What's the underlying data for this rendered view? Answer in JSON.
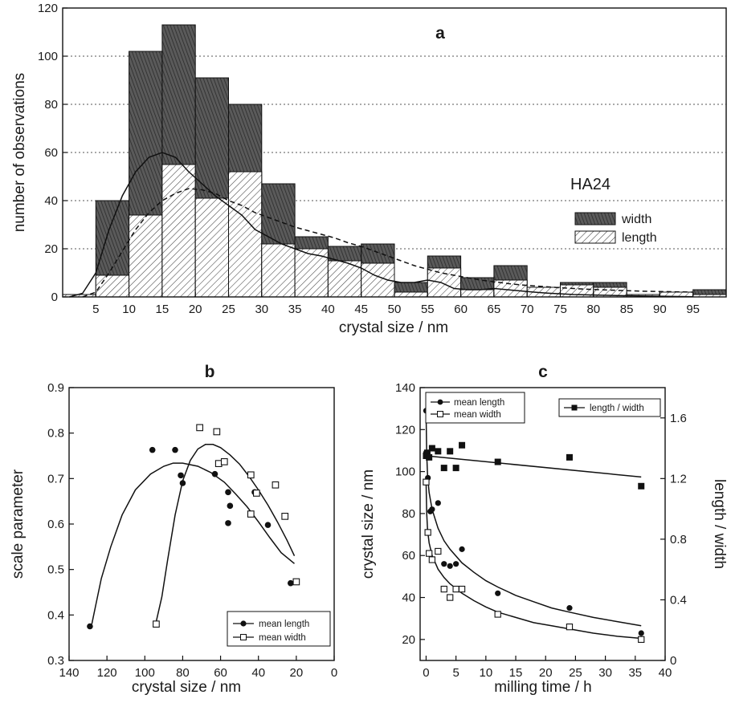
{
  "chart_data": [
    {
      "panel": "a",
      "type": "bar",
      "ylabel": "number of observations",
      "xlabel": "crystal size / nm",
      "annotation": "HA24",
      "xlim": [
        0,
        100
      ],
      "ylim": [
        0,
        120
      ],
      "xticks": [
        "5",
        "10",
        "15",
        "20",
        "25",
        "30",
        "35",
        "40",
        "45",
        "50",
        "55",
        "60",
        "65",
        "70",
        "75",
        "80",
        "85",
        "90",
        "95"
      ],
      "yticks": [
        "0",
        "20",
        "40",
        "60",
        "80",
        "100",
        "120"
      ],
      "grid": "horizontal dotted",
      "legend_position": "right",
      "bin_width": 5,
      "bin_starts": [
        0,
        5,
        10,
        15,
        20,
        25,
        30,
        35,
        40,
        45,
        50,
        55,
        60,
        65,
        70,
        75,
        80,
        85,
        90,
        95
      ],
      "series": [
        {
          "name": "width",
          "values": [
            1,
            40,
            102,
            113,
            91,
            80,
            47,
            25,
            21,
            22,
            6,
            17,
            8,
            13,
            4,
            6,
            6,
            1,
            2,
            3
          ]
        },
        {
          "name": "length",
          "values": [
            1,
            9,
            34,
            55,
            41,
            52,
            22,
            20,
            15,
            14,
            2,
            12,
            3,
            7,
            4,
            5,
            4,
            1,
            2,
            1
          ]
        }
      ],
      "fit_curves": [
        {
          "for": "width",
          "style": "solid",
          "points": [
            [
              1,
              0
            ],
            [
              3,
              1.5
            ],
            [
              5,
              10
            ],
            [
              7,
              28
            ],
            [
              9,
              42
            ],
            [
              11,
              52
            ],
            [
              13,
              58
            ],
            [
              15,
              60
            ],
            [
              17,
              58
            ],
            [
              19,
              52
            ],
            [
              21,
              47
            ],
            [
              23,
              42
            ],
            [
              25,
              38
            ],
            [
              27,
              34
            ],
            [
              29,
              28
            ],
            [
              31,
              25
            ],
            [
              33,
              22
            ],
            [
              35,
              20
            ],
            [
              37,
              18
            ],
            [
              39,
              17
            ],
            [
              41,
              15.5
            ],
            [
              43,
              14
            ],
            [
              45,
              12
            ],
            [
              47,
              9
            ],
            [
              49,
              7
            ],
            [
              51,
              6
            ],
            [
              53,
              6
            ],
            [
              55,
              7
            ],
            [
              57,
              6
            ],
            [
              59,
              3.5
            ],
            [
              61,
              3
            ],
            [
              63,
              3
            ],
            [
              65,
              3.5
            ],
            [
              67,
              3
            ],
            [
              69,
              2.5
            ],
            [
              71,
              2
            ],
            [
              73,
              1.6
            ],
            [
              75,
              1.3
            ],
            [
              77,
              1
            ],
            [
              80,
              0.8
            ],
            [
              85,
              0.5
            ],
            [
              90,
              0.3
            ],
            [
              95,
              0.1
            ]
          ]
        },
        {
          "for": "length",
          "style": "dashed",
          "points": [
            [
              3,
              0
            ],
            [
              5,
              2
            ],
            [
              7,
              10
            ],
            [
              9,
              19
            ],
            [
              11,
              28
            ],
            [
              13,
              35
            ],
            [
              15,
              40
            ],
            [
              17,
              43
            ],
            [
              19,
              45
            ],
            [
              21,
              44.5
            ],
            [
              23,
              43
            ],
            [
              25,
              40
            ],
            [
              27,
              38
            ],
            [
              29,
              35
            ],
            [
              31,
              33
            ],
            [
              33,
              31
            ],
            [
              35,
              29
            ],
            [
              37,
              27.5
            ],
            [
              39,
              26
            ],
            [
              41,
              24.5
            ],
            [
              43,
              22.5
            ],
            [
              45,
              21
            ],
            [
              47,
              19
            ],
            [
              49,
              17
            ],
            [
              51,
              15
            ],
            [
              53,
              13
            ],
            [
              55,
              11.5
            ],
            [
              57,
              10
            ],
            [
              59,
              9
            ],
            [
              61,
              8
            ],
            [
              63,
              7
            ],
            [
              65,
              6.3
            ],
            [
              67,
              5.6
            ],
            [
              69,
              5
            ],
            [
              71,
              4.6
            ],
            [
              73,
              4.2
            ],
            [
              75,
              3.8
            ],
            [
              77,
              3.5
            ],
            [
              79,
              3.2
            ],
            [
              81,
              3
            ],
            [
              83,
              2.8
            ],
            [
              85,
              2.6
            ],
            [
              87,
              2.4
            ],
            [
              89,
              2.3
            ],
            [
              91,
              2.2
            ],
            [
              93,
              2.1
            ],
            [
              95,
              2
            ]
          ]
        }
      ]
    },
    {
      "panel": "b",
      "type": "scatter",
      "ylabel": "scale parameter",
      "xlabel": "crystal size / nm",
      "xlim": [
        140,
        0
      ],
      "ylim": [
        0.3,
        0.9
      ],
      "xticks": [
        "140",
        "120",
        "100",
        "80",
        "60",
        "40",
        "20",
        "0"
      ],
      "yticks": [
        "0.3",
        "0.4",
        "0.5",
        "0.6",
        "0.7",
        "0.8",
        "0.9"
      ],
      "legend_position": "bottom-right",
      "series": [
        {
          "name": "mean length",
          "marker": "filled-circle",
          "points": [
            [
              129,
              0.375
            ],
            [
              96,
              0.763
            ],
            [
              84,
              0.763
            ],
            [
              81,
              0.707
            ],
            [
              80,
              0.69
            ],
            [
              63,
              0.71
            ],
            [
              56,
              0.67
            ],
            [
              56,
              0.602
            ],
            [
              55,
              0.64
            ],
            [
              42,
              0.67
            ],
            [
              35,
              0.598
            ],
            [
              23,
              0.47
            ]
          ]
        },
        {
          "name": "mean width",
          "marker": "open-square",
          "points": [
            [
              94,
              0.38
            ],
            [
              71,
              0.812
            ],
            [
              62,
              0.803
            ],
            [
              61,
              0.733
            ],
            [
              58,
              0.737
            ],
            [
              44,
              0.708
            ],
            [
              44,
              0.622
            ],
            [
              41,
              0.668
            ],
            [
              31,
              0.686
            ],
            [
              26,
              0.617
            ],
            [
              20,
              0.473
            ]
          ]
        }
      ],
      "fit_curves": [
        {
          "for": "mean length",
          "points": [
            [
              128,
              0.38
            ],
            [
              126,
              0.42
            ],
            [
              123,
              0.48
            ],
            [
              118,
              0.55
            ],
            [
              112,
              0.62
            ],
            [
              105,
              0.675
            ],
            [
              97,
              0.71
            ],
            [
              90,
              0.727
            ],
            [
              85,
              0.734
            ],
            [
              80,
              0.734
            ],
            [
              72,
              0.727
            ],
            [
              65,
              0.713
            ],
            [
              58,
              0.692
            ],
            [
              52,
              0.666
            ],
            [
              46,
              0.638
            ],
            [
              40,
              0.605
            ],
            [
              34,
              0.57
            ],
            [
              28,
              0.537
            ],
            [
              21,
              0.513
            ]
          ]
        },
        {
          "for": "mean width",
          "points": [
            [
              94,
              0.385
            ],
            [
              91,
              0.44
            ],
            [
              88,
              0.52
            ],
            [
              84,
              0.62
            ],
            [
              80,
              0.695
            ],
            [
              76,
              0.74
            ],
            [
              72,
              0.765
            ],
            [
              68,
              0.775
            ],
            [
              64,
              0.775
            ],
            [
              60,
              0.768
            ],
            [
              55,
              0.752
            ],
            [
              50,
              0.732
            ],
            [
              45,
              0.705
            ],
            [
              40,
              0.675
            ],
            [
              35,
              0.642
            ],
            [
              30,
              0.605
            ],
            [
              25,
              0.565
            ],
            [
              21,
              0.53
            ]
          ]
        }
      ]
    },
    {
      "panel": "c",
      "type": "scatter",
      "ylabel": "crystal size / nm",
      "y2label": "length / width",
      "xlabel": "milling time / h",
      "xlim": [
        -1,
        40
      ],
      "ylim": [
        10,
        140
      ],
      "y2lim": [
        0,
        1.8
      ],
      "xticks": [
        "0",
        "5",
        "10",
        "15",
        "20",
        "25",
        "30",
        "35",
        "40"
      ],
      "yticks": [
        "20",
        "40",
        "60",
        "80",
        "100",
        "120",
        "140"
      ],
      "y2ticks": [
        "0",
        "0.4",
        "0.8",
        "1.2",
        "1.6"
      ],
      "legend_position": "top-left and top-right",
      "series": [
        {
          "name": "mean length",
          "axis": "left",
          "marker": "filled-circle",
          "points": [
            [
              0,
              129
            ],
            [
              0,
              109
            ],
            [
              0.3,
              97
            ],
            [
              0.7,
              81
            ],
            [
              1,
              82
            ],
            [
              2,
              85
            ],
            [
              3,
              56
            ],
            [
              4,
              55
            ],
            [
              5,
              56
            ],
            [
              6,
              63
            ],
            [
              12,
              42
            ],
            [
              24,
              35
            ],
            [
              36,
              23
            ]
          ]
        },
        {
          "name": "mean width",
          "axis": "left",
          "marker": "open-square",
          "points": [
            [
              0,
              95
            ],
            [
              0.3,
              71
            ],
            [
              0.5,
              61
            ],
            [
              1,
              58
            ],
            [
              2,
              62
            ],
            [
              3,
              44
            ],
            [
              4,
              40
            ],
            [
              5,
              44
            ],
            [
              6,
              44
            ],
            [
              12,
              32
            ],
            [
              24,
              26
            ],
            [
              36,
              20
            ]
          ]
        },
        {
          "name": "length / width",
          "axis": "right",
          "marker": "filled-square",
          "points": [
            [
              0,
              1.35
            ],
            [
              0.2,
              1.37
            ],
            [
              0.5,
              1.34
            ],
            [
              1,
              1.4
            ],
            [
              2,
              1.38
            ],
            [
              3,
              1.27
            ],
            [
              4,
              1.38
            ],
            [
              5,
              1.27
            ],
            [
              6,
              1.42
            ],
            [
              12,
              1.31
            ],
            [
              24,
              1.34
            ],
            [
              36,
              1.15
            ]
          ]
        }
      ],
      "fit_curves": [
        {
          "for": "mean length",
          "axis": "left",
          "points": [
            [
              0,
              128
            ],
            [
              0.1,
              108
            ],
            [
              0.25,
              98
            ],
            [
              0.5,
              90
            ],
            [
              1,
              82
            ],
            [
              2,
              73
            ],
            [
              3,
              67
            ],
            [
              4,
              63
            ],
            [
              6,
              56.5
            ],
            [
              8,
              52
            ],
            [
              10,
              48
            ],
            [
              12,
              45
            ],
            [
              15,
              41
            ],
            [
              18,
              38
            ],
            [
              21,
              35
            ],
            [
              24,
              33
            ],
            [
              28,
              30.5
            ],
            [
              32,
              28.5
            ],
            [
              36,
              26.5
            ]
          ]
        },
        {
          "for": "mean width",
          "axis": "left",
          "points": [
            [
              0,
              95
            ],
            [
              0.1,
              80
            ],
            [
              0.25,
              72
            ],
            [
              0.5,
              66
            ],
            [
              1,
              60
            ],
            [
              2,
              53.5
            ],
            [
              3,
              49.5
            ],
            [
              4,
              46.5
            ],
            [
              6,
              42
            ],
            [
              8,
              38.5
            ],
            [
              10,
              35.5
            ],
            [
              12,
              33
            ],
            [
              15,
              30.5
            ],
            [
              18,
              28
            ],
            [
              21,
              26.5
            ],
            [
              24,
              25
            ],
            [
              28,
              23
            ],
            [
              32,
              21.5
            ],
            [
              36,
              20.5
            ]
          ]
        },
        {
          "for": "length / width",
          "axis": "right",
          "points": [
            [
              0,
              1.35
            ],
            [
              36,
              1.21
            ]
          ]
        }
      ]
    }
  ]
}
